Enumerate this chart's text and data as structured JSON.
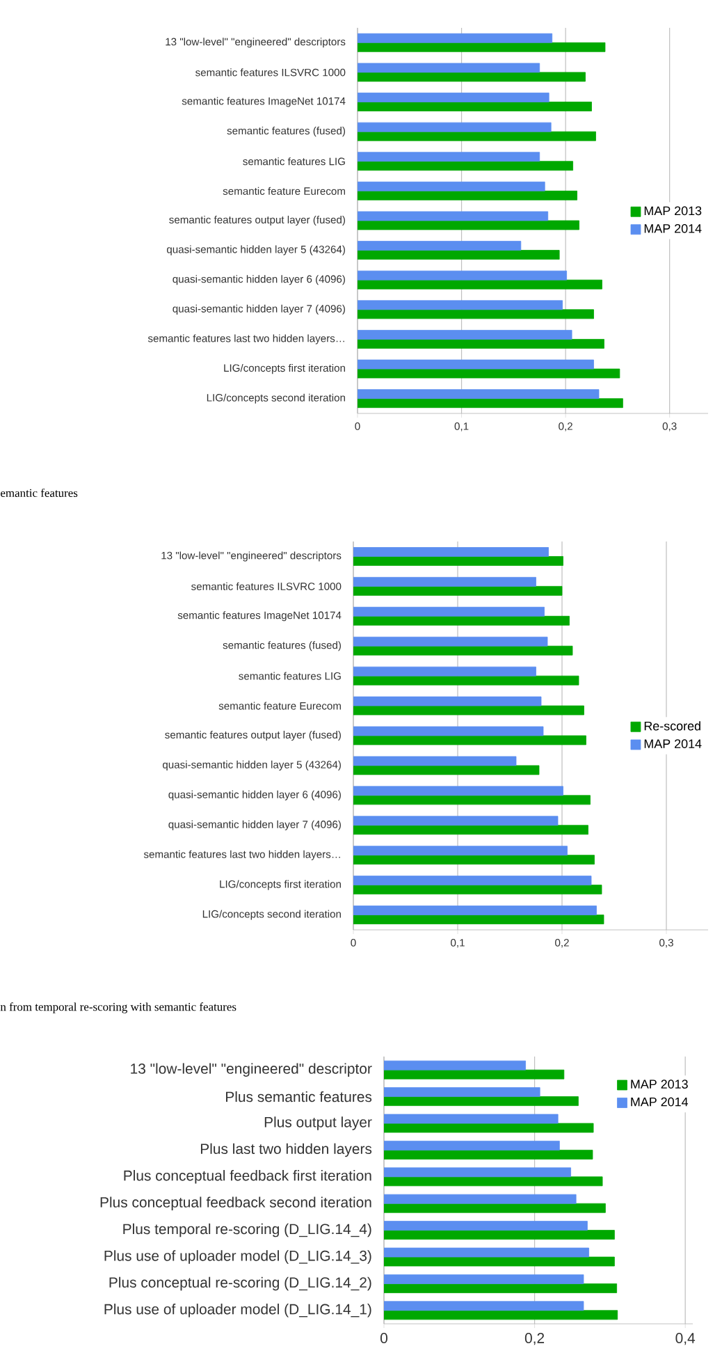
{
  "chart_data": [
    {
      "type": "bar",
      "orientation": "horizontal",
      "categories": [
        "13 \"low-level\" \"engineered\" descriptors",
        "semantic features ILSVRC 1000",
        "semantic features ImageNet 10174",
        "semantic features (fused)",
        "semantic features LIG",
        "semantic feature Eurecom",
        "semantic features output layer (fused)",
        "quasi-semantic hidden layer 5 (43264)",
        "quasi-semantic hidden layer 6 (4096)",
        "quasi-semantic hidden layer 7 (4096)",
        "semantic features last two hidden layers…",
        "LIG/concepts first iteration",
        "LIG/concepts second iteration"
      ],
      "series": [
        {
          "name": "MAP 2013",
          "color": "#00a800",
          "values": [
            0.238,
            0.219,
            0.225,
            0.229,
            0.207,
            0.211,
            0.213,
            0.194,
            0.235,
            0.227,
            0.237,
            0.252,
            0.255
          ]
        },
        {
          "name": "MAP 2014",
          "color": "#5b8ef0",
          "values": [
            0.187,
            0.175,
            0.184,
            0.186,
            0.175,
            0.18,
            0.183,
            0.157,
            0.201,
            0.197,
            0.206,
            0.227,
            0.232
          ]
        }
      ],
      "xlim": [
        0,
        0.337
      ],
      "xticks": [
        0,
        {
          "value": 0.1,
          "label": "0,1"
        },
        {
          "value": 0.2,
          "label": "0,2"
        },
        {
          "value": 0.3,
          "label": "0,3"
        }
      ],
      "grid": "x",
      "legend": "right",
      "annotations": [
        "emantic features"
      ]
    },
    {
      "type": "bar",
      "orientation": "horizontal",
      "categories": [
        "13 \"low-level\" \"engineered\" descriptors",
        "semantic features ILSVRC 1000",
        "semantic features ImageNet 10174",
        "semantic features (fused)",
        "semantic features LIG",
        "semantic feature Eurecom",
        "semantic features output layer (fused)",
        "quasi-semantic hidden layer 5 (43264)",
        "quasi-semantic hidden layer 6 (4096)",
        "quasi-semantic hidden layer 7 (4096)",
        "semantic features last two hidden layers…",
        "LIG/concepts first iteration",
        "LIG/concepts second iteration"
      ],
      "series": [
        {
          "name": "Re-scored",
          "color": "#00a800",
          "values": [
            0.201,
            0.2,
            0.207,
            0.21,
            0.216,
            0.221,
            0.223,
            0.178,
            0.227,
            0.225,
            0.231,
            0.238,
            0.24
          ]
        },
        {
          "name": "MAP 2014",
          "color": "#5b8ef0",
          "values": [
            0.187,
            0.175,
            0.183,
            0.186,
            0.175,
            0.18,
            0.182,
            0.156,
            0.201,
            0.196,
            0.205,
            0.228,
            0.233
          ]
        }
      ],
      "xlim": [
        0,
        0.34
      ],
      "xticks": [
        0,
        {
          "value": 0.1,
          "label": "0,1"
        },
        {
          "value": 0.2,
          "label": "0,2"
        },
        {
          "value": 0.3,
          "label": "0,3"
        }
      ],
      "grid": "x",
      "legend": "right",
      "annotations": [
        "n from temporal re-scoring with semantic features"
      ]
    },
    {
      "type": "bar",
      "orientation": "horizontal",
      "categories": [
        "13 \"low-level\" \"engineered\" descriptor",
        "Plus semantic features",
        "Plus output layer",
        "Plus last two hidden layers",
        "Plus conceptual feedback first iteration",
        "Plus conceptual feedback second iteration",
        "Plus temporal re-scoring (D_LIG.14_4)",
        "Plus use of uploader model (D_LIG.14_3)",
        "Plus conceptual re-scoring (D_LIG.14_2)",
        "Plus use of uploader model (D_LIG.14_1)"
      ],
      "series": [
        {
          "name": "MAP 2013",
          "color": "#00a800",
          "values": [
            0.239,
            0.258,
            0.278,
            0.277,
            0.29,
            0.294,
            0.306,
            0.306,
            0.309,
            0.31
          ]
        },
        {
          "name": "MAP 2014",
          "color": "#5b8ef0",
          "values": [
            0.188,
            0.207,
            0.231,
            0.233,
            0.248,
            0.255,
            0.27,
            0.272,
            0.265,
            0.265
          ]
        }
      ],
      "xlim": [
        0,
        0.41
      ],
      "xticks": [
        0,
        {
          "value": 0.2,
          "label": "0,2"
        },
        {
          "value": 0.4,
          "label": "0,4"
        }
      ],
      "grid": "x",
      "legend": "top right"
    }
  ]
}
